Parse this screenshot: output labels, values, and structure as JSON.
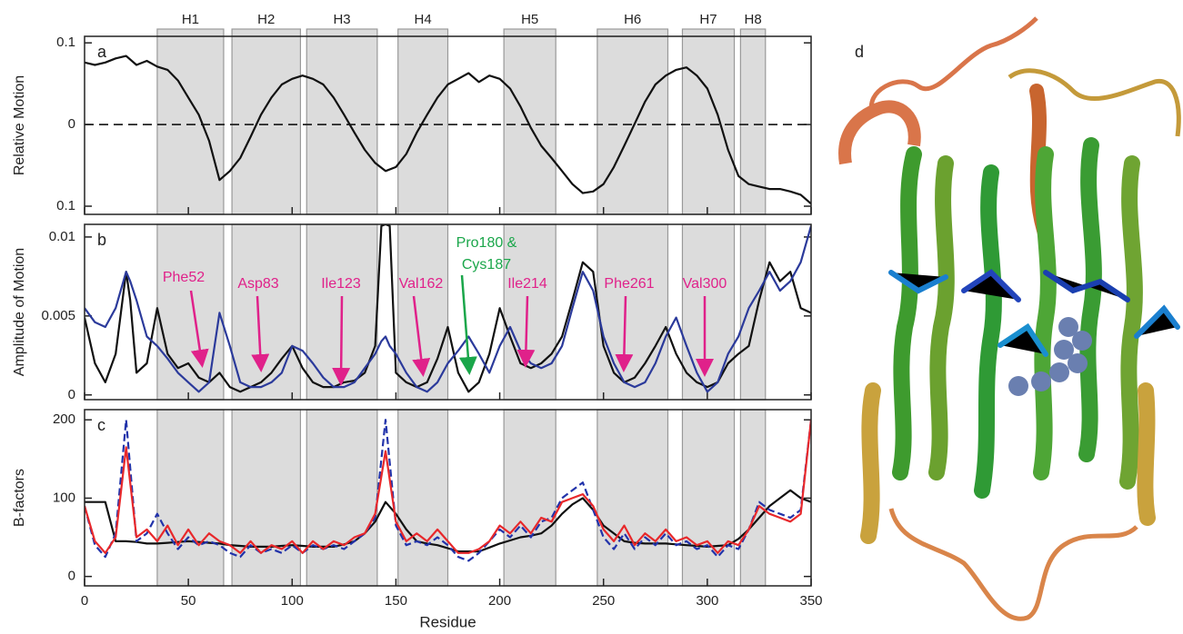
{
  "chart_data": [
    {
      "type": "line",
      "panel_label": "a",
      "ylabel": "Relative Motion",
      "regions": [
        {
          "label": "H1",
          "start": 35,
          "end": 67
        },
        {
          "label": "H2",
          "start": 71,
          "end": 104
        },
        {
          "label": "H3",
          "start": 107,
          "end": 141
        },
        {
          "label": "H4",
          "start": 151,
          "end": 175
        },
        {
          "label": "H5",
          "start": 202,
          "end": 227
        },
        {
          "label": "H6",
          "start": 247,
          "end": 281
        },
        {
          "label": "H7",
          "start": 288,
          "end": 313
        },
        {
          "label": "H8",
          "start": 316,
          "end": 328
        }
      ],
      "xlim": [
        0,
        350
      ],
      "ylim": [
        -0.11,
        0.108
      ],
      "yticks": [
        0.1,
        0,
        {
          "value": -0.1,
          "label": "0.1"
        }
      ],
      "zero_line": true,
      "x": [
        0,
        5,
        10,
        15,
        20,
        25,
        30,
        35,
        40,
        45,
        50,
        55,
        60,
        65,
        70,
        75,
        80,
        85,
        90,
        95,
        100,
        105,
        110,
        115,
        120,
        125,
        130,
        135,
        140,
        145,
        150,
        155,
        160,
        165,
        170,
        175,
        180,
        185,
        190,
        195,
        200,
        205,
        210,
        215,
        220,
        225,
        230,
        235,
        240,
        245,
        250,
        255,
        260,
        265,
        270,
        275,
        280,
        285,
        290,
        295,
        300,
        305,
        310,
        315,
        320,
        325,
        330,
        335,
        340,
        345,
        350
      ],
      "series": [
        {
          "color": "#111111",
          "values": [
            0.076,
            0.073,
            0.076,
            0.081,
            0.084,
            0.073,
            0.078,
            0.071,
            0.067,
            0.054,
            0.033,
            0.012,
            -0.02,
            -0.068,
            -0.057,
            -0.041,
            -0.015,
            0.012,
            0.033,
            0.049,
            0.056,
            0.06,
            0.056,
            0.049,
            0.033,
            0.012,
            -0.01,
            -0.031,
            -0.047,
            -0.057,
            -0.052,
            -0.036,
            -0.01,
            0.012,
            0.033,
            0.049,
            0.056,
            0.063,
            0.052,
            0.06,
            0.056,
            0.044,
            0.022,
            -0.004,
            -0.026,
            -0.041,
            -0.057,
            -0.073,
            -0.084,
            -0.082,
            -0.073,
            -0.052,
            -0.026,
            0.001,
            0.028,
            0.049,
            0.06,
            0.067,
            0.07,
            0.06,
            0.044,
            0.012,
            -0.031,
            -0.063,
            -0.073,
            -0.076,
            -0.079,
            -0.079,
            -0.082,
            -0.086,
            -0.097
          ]
        }
      ]
    },
    {
      "type": "line",
      "panel_label": "b",
      "ylabel": "Amplitude of Motion",
      "xlim": [
        0,
        350
      ],
      "ylim": [
        -0.0003,
        0.0108
      ],
      "yticks": [
        0.01,
        0.005,
        0
      ],
      "annotations": [
        {
          "text": [
            "Phe52"
          ],
          "color": "#e0218a"
        },
        {
          "text": [
            "Asp83"
          ],
          "color": "#e0218a"
        },
        {
          "text": [
            "Ile123"
          ],
          "color": "#e0218a"
        },
        {
          "text": [
            "Val162"
          ],
          "color": "#e0218a"
        },
        {
          "text": [
            "Pro180 &",
            "Cys187"
          ],
          "color": "#1aa64a"
        },
        {
          "text": [
            "Ile214"
          ],
          "color": "#e0218a"
        },
        {
          "text": [
            "Phe261"
          ],
          "color": "#e0218a"
        },
        {
          "text": [
            "Val300"
          ],
          "color": "#e0218a"
        }
      ],
      "x": [
        0,
        5,
        10,
        15,
        20,
        22,
        25,
        30,
        35,
        40,
        45,
        50,
        55,
        60,
        65,
        70,
        75,
        80,
        85,
        90,
        95,
        100,
        105,
        110,
        115,
        120,
        125,
        130,
        135,
        140,
        143,
        145,
        147,
        150,
        155,
        160,
        165,
        170,
        175,
        180,
        185,
        190,
        195,
        200,
        205,
        210,
        215,
        220,
        225,
        230,
        235,
        240,
        245,
        250,
        255,
        260,
        265,
        270,
        275,
        280,
        285,
        290,
        295,
        300,
        305,
        310,
        315,
        320,
        325,
        330,
        335,
        340,
        345,
        350
      ],
      "series": [
        {
          "color": "#111111",
          "values": [
            0.0049,
            0.002,
            0.0008,
            0.0026,
            0.0078,
            0.006,
            0.0014,
            0.002,
            0.0055,
            0.0026,
            0.0017,
            0.002,
            0.0011,
            0.0008,
            0.0014,
            0.0005,
            0.0002,
            0.0005,
            0.0008,
            0.0014,
            0.0023,
            0.0031,
            0.0017,
            0.0008,
            0.0005,
            0.0005,
            0.0008,
            0.0009,
            0.0014,
            0.0031,
            0.0107,
            0.0108,
            0.0107,
            0.0014,
            0.0008,
            0.0005,
            0.0008,
            0.0023,
            0.0043,
            0.0014,
            0.0002,
            0.0008,
            0.0026,
            0.0055,
            0.0037,
            0.002,
            0.0017,
            0.002,
            0.0026,
            0.0037,
            0.006,
            0.0084,
            0.0078,
            0.0031,
            0.0014,
            0.0008,
            0.0011,
            0.002,
            0.0031,
            0.0043,
            0.0026,
            0.0014,
            0.0008,
            0.0005,
            0.0008,
            0.002,
            0.0026,
            0.0031,
            0.006,
            0.0084,
            0.0072,
            0.0078,
            0.0055,
            0.0052
          ]
        },
        {
          "color": "#2b3a9b",
          "values": [
            0.0055,
            0.0046,
            0.0043,
            0.0055,
            0.0078,
            0.0072,
            0.006,
            0.0037,
            0.0031,
            0.0023,
            0.0014,
            0.0008,
            0.0002,
            0.0008,
            0.0052,
            0.0031,
            0.0008,
            0.0005,
            0.0005,
            0.0008,
            0.0014,
            0.0031,
            0.0028,
            0.002,
            0.0011,
            0.0005,
            0.0005,
            0.0008,
            0.0017,
            0.0026,
            0.0034,
            0.0037,
            0.0031,
            0.0026,
            0.0014,
            0.0005,
            0.0002,
            0.0008,
            0.002,
            0.0028,
            0.0037,
            0.0026,
            0.0014,
            0.0031,
            0.0043,
            0.0028,
            0.002,
            0.0017,
            0.002,
            0.0031,
            0.0055,
            0.0078,
            0.0066,
            0.0037,
            0.002,
            0.0008,
            0.0005,
            0.0008,
            0.002,
            0.0037,
            0.0049,
            0.0031,
            0.0014,
            0.0002,
            0.0008,
            0.0026,
            0.0037,
            0.0055,
            0.0066,
            0.0078,
            0.0066,
            0.0072,
            0.0084,
            0.0107
          ]
        }
      ]
    },
    {
      "type": "line",
      "panel_label": "c",
      "ylabel": "B-factors",
      "xlabel": "Residue",
      "xlim": [
        0,
        350
      ],
      "xticks": [
        0,
        50,
        100,
        150,
        200,
        250,
        300,
        350
      ],
      "ylim": [
        -12,
        213
      ],
      "yticks": [
        0,
        100,
        200
      ],
      "x": [
        0,
        5,
        10,
        15,
        20,
        25,
        30,
        35,
        40,
        45,
        50,
        55,
        60,
        65,
        70,
        75,
        80,
        85,
        90,
        95,
        100,
        105,
        110,
        115,
        120,
        125,
        130,
        135,
        140,
        145,
        150,
        155,
        160,
        165,
        170,
        175,
        180,
        185,
        190,
        195,
        200,
        205,
        210,
        215,
        220,
        225,
        230,
        235,
        240,
        245,
        250,
        255,
        260,
        265,
        270,
        275,
        280,
        285,
        290,
        295,
        300,
        305,
        310,
        315,
        320,
        325,
        330,
        335,
        340,
        345,
        350
      ],
      "series": [
        {
          "color": "#111111",
          "dashed": false,
          "values": [
            95,
            95,
            95,
            45,
            45,
            44,
            42,
            42,
            43,
            44,
            45,
            44,
            43,
            42,
            40,
            39,
            38,
            38,
            38,
            39,
            40,
            39,
            38,
            38,
            38,
            41,
            45,
            55,
            70,
            95,
            80,
            60,
            45,
            42,
            40,
            36,
            32,
            32,
            32,
            37,
            42,
            46,
            50,
            52,
            55,
            65,
            80,
            92,
            100,
            85,
            65,
            55,
            45,
            43,
            42,
            42,
            42,
            41,
            40,
            39,
            38,
            39,
            40,
            48,
            60,
            75,
            90,
            100,
            110,
            100,
            95
          ]
        },
        {
          "color": "#2233aa",
          "dashed": true,
          "values": [
            90,
            40,
            25,
            55,
            200,
            45,
            55,
            80,
            55,
            35,
            50,
            40,
            45,
            40,
            30,
            25,
            40,
            30,
            35,
            30,
            40,
            30,
            40,
            35,
            40,
            35,
            45,
            55,
            75,
            200,
            65,
            40,
            45,
            40,
            50,
            40,
            25,
            20,
            30,
            45,
            60,
            50,
            65,
            50,
            70,
            75,
            100,
            110,
            120,
            85,
            50,
            35,
            55,
            35,
            50,
            40,
            55,
            40,
            45,
            35,
            40,
            25,
            40,
            35,
            60,
            95,
            85,
            80,
            75,
            85,
            200
          ]
        },
        {
          "color": "#e8282b",
          "dashed": false,
          "values": [
            90,
            45,
            30,
            50,
            165,
            50,
            60,
            45,
            65,
            40,
            60,
            40,
            55,
            45,
            40,
            30,
            45,
            30,
            40,
            35,
            45,
            30,
            45,
            35,
            45,
            40,
            50,
            55,
            80,
            160,
            70,
            45,
            55,
            45,
            60,
            45,
            30,
            30,
            35,
            45,
            65,
            55,
            70,
            55,
            75,
            70,
            95,
            100,
            105,
            90,
            60,
            45,
            65,
            40,
            55,
            45,
            60,
            45,
            50,
            40,
            45,
            30,
            45,
            40,
            60,
            90,
            80,
            75,
            70,
            80,
            200
          ]
        }
      ]
    }
  ],
  "protein_label": "d"
}
